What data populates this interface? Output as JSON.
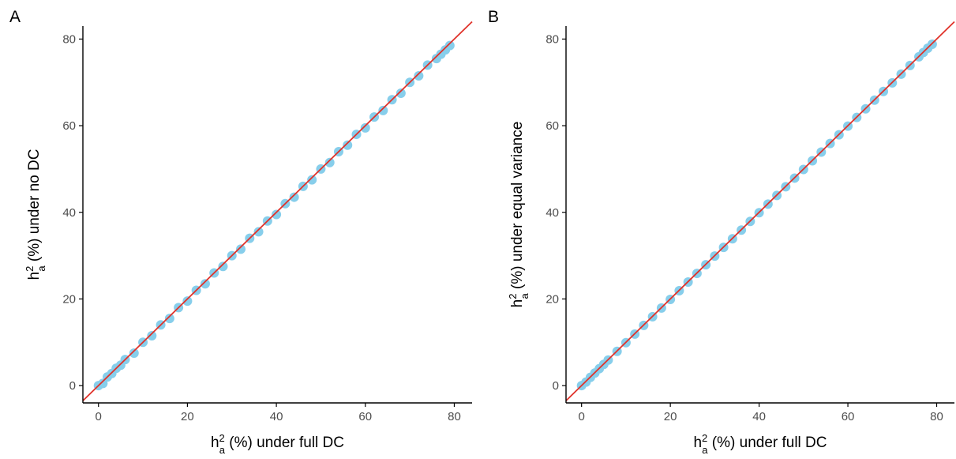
{
  "colors": {
    "points": "#87ceeb",
    "reference_line": "#e0322a",
    "axis": "#000000",
    "tick_label": "#4d4d4d"
  },
  "chart_data": [
    {
      "type": "scatter",
      "panel_label": "A",
      "xlabel_base": "h",
      "xlabel_superscript": "2",
      "xlabel_subscript": "a",
      "xlabel_rest": " (%) under full DC",
      "ylabel_base": "h",
      "ylabel_superscript": "2",
      "ylabel_subscript": "a",
      "ylabel_rest": " (%) under no DC",
      "xlim": [
        -3.5,
        84
      ],
      "ylim": [
        -4,
        83
      ],
      "xticks": [
        0,
        20,
        40,
        60,
        80
      ],
      "yticks": [
        0,
        20,
        40,
        60,
        80
      ],
      "grid": false,
      "reference_line": {
        "slope": 1,
        "intercept": 0
      },
      "series": [
        {
          "x": [
            0,
            1,
            2,
            3,
            4,
            5,
            6,
            8,
            10,
            12,
            14,
            16,
            18,
            20,
            22,
            24,
            26,
            28,
            30,
            32,
            34,
            36,
            38,
            40,
            42,
            44,
            46,
            48,
            50,
            52,
            54,
            56,
            58,
            60,
            62,
            64,
            66,
            68,
            70,
            72,
            74,
            76,
            77,
            78,
            79
          ],
          "y": [
            0,
            0.5,
            2,
            2.8,
            4,
            4.7,
            6,
            7.5,
            10,
            11.5,
            14,
            15.5,
            18,
            19.5,
            22,
            23.5,
            26,
            27.5,
            30,
            31.5,
            34,
            35.5,
            38,
            39.5,
            42,
            43.5,
            46,
            47.5,
            50,
            51.5,
            54,
            55.5,
            58,
            59.5,
            62,
            63.5,
            66,
            67.5,
            70,
            71.5,
            74,
            75.5,
            76.5,
            77.5,
            78.5
          ]
        }
      ]
    },
    {
      "type": "scatter",
      "panel_label": "B",
      "xlabel_base": "h",
      "xlabel_superscript": "2",
      "xlabel_subscript": "a",
      "xlabel_rest": " (%) under full DC",
      "ylabel_base": "h",
      "ylabel_superscript": "2",
      "ylabel_subscript": "a",
      "ylabel_rest": " (%) under equal variance",
      "xlim": [
        -3.5,
        84
      ],
      "ylim": [
        -4,
        83
      ],
      "xticks": [
        0,
        20,
        40,
        60,
        80
      ],
      "yticks": [
        0,
        20,
        40,
        60,
        80
      ],
      "grid": false,
      "reference_line": {
        "slope": 1,
        "intercept": 0
      },
      "series": [
        {
          "x": [
            0,
            1,
            2,
            3,
            4,
            5,
            6,
            8,
            10,
            12,
            14,
            16,
            18,
            20,
            22,
            24,
            26,
            28,
            30,
            32,
            34,
            36,
            38,
            40,
            42,
            44,
            46,
            48,
            50,
            52,
            54,
            56,
            58,
            60,
            62,
            64,
            66,
            68,
            70,
            72,
            74,
            76,
            77,
            78,
            79
          ],
          "y": [
            0,
            0.8,
            1.9,
            2.9,
            3.9,
            4.9,
            5.9,
            7.9,
            9.9,
            11.9,
            13.9,
            15.9,
            17.9,
            19.9,
            21.9,
            23.9,
            25.9,
            27.9,
            29.9,
            31.9,
            33.9,
            35.9,
            37.9,
            39.9,
            41.9,
            43.9,
            45.9,
            47.9,
            49.9,
            51.9,
            53.9,
            55.9,
            57.9,
            59.9,
            61.9,
            63.9,
            65.9,
            67.9,
            69.9,
            71.9,
            73.9,
            75.9,
            76.9,
            77.9,
            78.8
          ]
        }
      ]
    }
  ]
}
